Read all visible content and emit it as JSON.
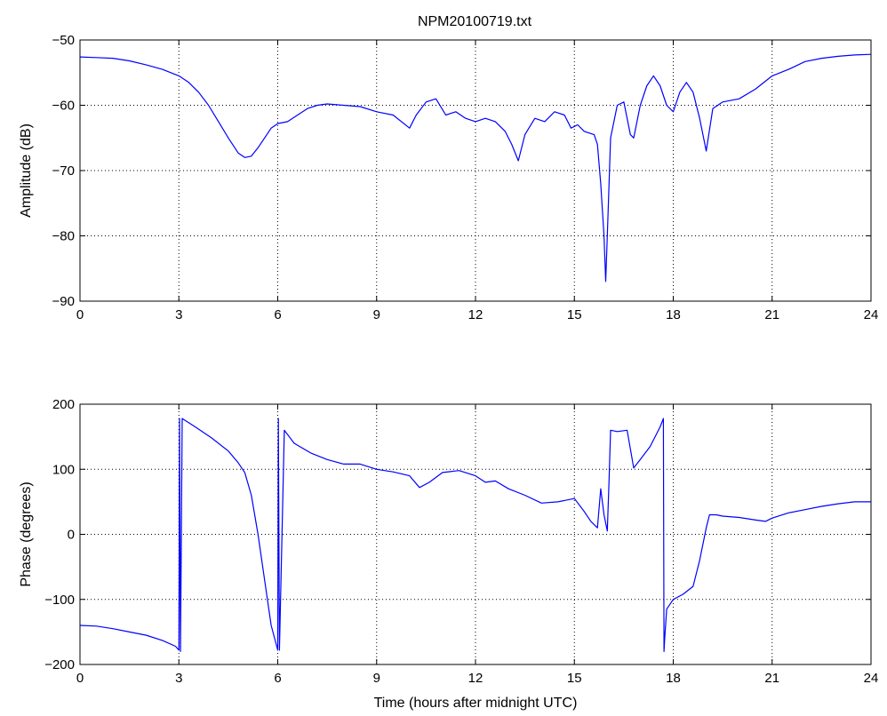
{
  "chart_data": [
    {
      "type": "line",
      "title": "NPM20100719.txt",
      "xlabel": "",
      "ylabel": "Amplitude (dB)",
      "xlim": [
        0,
        24
      ],
      "ylim": [
        -90,
        -50
      ],
      "xticks": [
        0,
        3,
        6,
        9,
        12,
        15,
        18,
        21,
        24
      ],
      "yticks": [
        -90,
        -80,
        -70,
        -60,
        -50
      ],
      "grid": true,
      "series": [
        {
          "color": "#0000ff",
          "x": [
            0,
            0.5,
            1,
            1.5,
            2,
            2.5,
            3,
            3.3,
            3.6,
            3.9,
            4.2,
            4.5,
            4.8,
            5.0,
            5.2,
            5.4,
            5.6,
            5.8,
            6.0,
            6.3,
            6.6,
            6.9,
            7.2,
            7.5,
            8.0,
            8.5,
            9.0,
            9.5,
            10.0,
            10.2,
            10.5,
            10.8,
            11.1,
            11.4,
            11.7,
            12.0,
            12.3,
            12.6,
            12.9,
            13.1,
            13.3,
            13.5,
            13.8,
            14.1,
            14.4,
            14.7,
            14.9,
            15.1,
            15.3,
            15.6,
            15.7,
            15.8,
            15.9,
            15.95,
            16.0,
            16.1,
            16.3,
            16.5,
            16.7,
            16.8,
            17.0,
            17.2,
            17.4,
            17.6,
            17.8,
            18.0,
            18.2,
            18.4,
            18.6,
            18.8,
            19.0,
            19.2,
            19.5,
            20.0,
            20.5,
            21.0,
            21.5,
            22.0,
            22.5,
            23.0,
            23.5,
            24.0
          ],
          "y": [
            -52.6,
            -52.7,
            -52.8,
            -53.2,
            -53.8,
            -54.5,
            -55.5,
            -56.5,
            -58.0,
            -60.0,
            -62.5,
            -65.0,
            -67.3,
            -68.0,
            -67.8,
            -66.5,
            -65.0,
            -63.5,
            -62.8,
            -62.5,
            -61.5,
            -60.5,
            -60.0,
            -59.8,
            -60.0,
            -60.2,
            -61.0,
            -61.5,
            -63.5,
            -61.5,
            -59.5,
            -59.0,
            -61.5,
            -61.0,
            -62.0,
            -62.5,
            -62.0,
            -62.5,
            -64.0,
            -66.0,
            -68.5,
            -64.5,
            -62.0,
            -62.5,
            -61.0,
            -61.5,
            -63.5,
            -63.0,
            -64.0,
            -64.5,
            -66.0,
            -72.0,
            -80.0,
            -87.0,
            -80.0,
            -65.0,
            -60.0,
            -59.5,
            -64.5,
            -65.0,
            -60.0,
            -57.0,
            -55.5,
            -57.0,
            -60.0,
            -61.0,
            -58.0,
            -56.5,
            -58.0,
            -62.0,
            -67.0,
            -60.5,
            -59.5,
            -59.0,
            -57.5,
            -55.5,
            -54.5,
            -53.3,
            -52.8,
            -52.5,
            -52.3,
            -52.2
          ]
        }
      ]
    },
    {
      "type": "line",
      "title": "",
      "xlabel": "Time (hours after midnight UTC)",
      "ylabel": "Phase (degrees)",
      "xlim": [
        0,
        24
      ],
      "ylim": [
        -200,
        200
      ],
      "xticks": [
        0,
        3,
        6,
        9,
        12,
        15,
        18,
        21,
        24
      ],
      "yticks": [
        -200,
        -100,
        0,
        100,
        200
      ],
      "grid": true,
      "series": [
        {
          "color": "#0000ff",
          "x": [
            0,
            0.5,
            1.0,
            1.5,
            2.0,
            2.5,
            2.9,
            3.0,
            3.02,
            3.05,
            3.1,
            3.5,
            4.0,
            4.5,
            4.8,
            5.0,
            5.2,
            5.4,
            5.6,
            5.8,
            6.0,
            6.02,
            6.05,
            6.2,
            6.5,
            7.0,
            7.5,
            8.0,
            8.5,
            9.0,
            9.5,
            10.0,
            10.3,
            10.6,
            11.0,
            11.5,
            12.0,
            12.3,
            12.6,
            13.0,
            13.5,
            14.0,
            14.5,
            15.0,
            15.3,
            15.5,
            15.7,
            15.8,
            15.9,
            16.0,
            16.05,
            16.1,
            16.3,
            16.6,
            16.8,
            17.0,
            17.3,
            17.6,
            17.7,
            17.72,
            17.74,
            17.8,
            18.0,
            18.3,
            18.6,
            18.8,
            19.0,
            19.1,
            19.3,
            19.5,
            20.0,
            20.5,
            20.8,
            21.0,
            21.5,
            22.0,
            22.5,
            23.0,
            23.5,
            24.0
          ],
          "y": [
            -140,
            -141,
            -145,
            -150,
            -155,
            -163,
            -172,
            -178,
            178,
            -180,
            178,
            165,
            148,
            128,
            110,
            95,
            60,
            0,
            -70,
            -140,
            -178,
            178,
            -178,
            160,
            140,
            125,
            115,
            108,
            108,
            100,
            96,
            90,
            72,
            80,
            95,
            98,
            90,
            80,
            82,
            70,
            60,
            48,
            50,
            55,
            35,
            20,
            10,
            70,
            30,
            5,
            80,
            160,
            158,
            160,
            102,
            115,
            135,
            165,
            178,
            -180,
            -160,
            -115,
            -100,
            -92,
            -80,
            -40,
            10,
            30,
            30,
            28,
            26,
            22,
            20,
            25,
            33,
            38,
            43,
            47,
            50,
            50
          ]
        }
      ]
    }
  ]
}
